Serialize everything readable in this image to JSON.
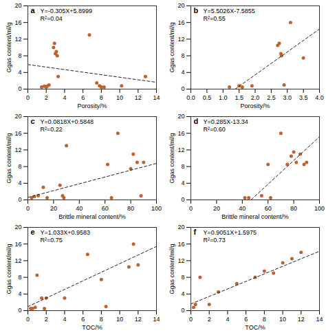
{
  "chart_data": [
    {
      "type": "scatter",
      "title": "a",
      "xlabel": "Porosity/%",
      "ylabel": "Ggas content/ml/g",
      "annotations": [
        "Y=-0.305X+5.8999",
        "R²=0.04"
      ],
      "xlim": [
        0,
        14
      ],
      "ylim": [
        0,
        20
      ],
      "xticks": [
        0,
        2,
        4,
        6,
        8,
        10,
        12,
        14
      ],
      "yticks": [
        0,
        4,
        8,
        12,
        16,
        20
      ],
      "grid": false,
      "series": [
        {
          "type": "scatter",
          "marker": "circle",
          "color": "#c0612b",
          "x": [
            1.5,
            1.8,
            2.0,
            2.1,
            2.3,
            2.8,
            2.9,
            3.0,
            3.1,
            3.2,
            3.3,
            6.7,
            7.5,
            7.8,
            8.0,
            8.3,
            10.2,
            12.8
          ],
          "values": [
            0.5,
            0.7,
            0.5,
            0.7,
            1.0,
            10.0,
            11.0,
            8.5,
            9.0,
            8.0,
            3.0,
            13.0,
            1.5,
            0.8,
            0.5,
            0.5,
            0.8,
            3.0
          ]
        },
        {
          "type": "line",
          "line_style": "dashed",
          "color": "#222222",
          "x": [
            0,
            14
          ],
          "values": [
            5.8999,
            1.6299
          ]
        }
      ]
    },
    {
      "type": "scatter",
      "title": "b",
      "xlabel": "Porosity/%",
      "ylabel": "Ggas content/ml/g",
      "annotations": [
        "Y=5.5026X-7.5855",
        "R²=0.55"
      ],
      "xlim": [
        0,
        4
      ],
      "ylim": [
        0,
        20
      ],
      "xticks": [
        {
          "value": 0,
          "label": "0.0"
        },
        0.5,
        {
          "value": 1,
          "label": "1.0"
        },
        1.5,
        {
          "value": 2,
          "label": "2.0"
        },
        2.5,
        {
          "value": 3,
          "label": "3.0"
        },
        3.5,
        {
          "value": 4,
          "label": "4.0"
        }
      ],
      "yticks": [
        0,
        4,
        8,
        12,
        16,
        20
      ],
      "grid": false,
      "series": [
        {
          "type": "scatter",
          "marker": "circle",
          "color": "#c0612b",
          "x": [
            1.2,
            1.5,
            1.6,
            1.9,
            2.7,
            2.75,
            2.8,
            2.82,
            2.9,
            3.1,
            3.5
          ],
          "values": [
            0.5,
            0.8,
            0.5,
            0.8,
            10.5,
            11.0,
            8.5,
            8.0,
            1.0,
            16.0,
            7.5
          ]
        },
        {
          "type": "line",
          "line_style": "dashed",
          "color": "#222222",
          "x": [
            1.38,
            4.0
          ],
          "values": [
            0.008088,
            14.4249
          ]
        }
      ]
    },
    {
      "type": "scatter",
      "title": "c",
      "xlabel": "Brittle mineral content/%",
      "ylabel": "Ggas content/ml/g",
      "annotations": [
        "Y=0.0818X+0.5848",
        "R²=0.22"
      ],
      "xlim": [
        0,
        100
      ],
      "ylim": [
        0,
        20
      ],
      "xticks": [
        0,
        20,
        40,
        60,
        80,
        100
      ],
      "yticks": [
        0,
        4,
        8,
        12,
        16,
        20
      ],
      "grid": false,
      "series": [
        {
          "type": "scatter",
          "marker": "circle",
          "color": "#c0612b",
          "x": [
            3,
            5,
            8,
            12,
            15,
            25,
            27,
            28,
            30,
            62,
            65,
            70,
            80,
            82,
            85,
            88,
            90
          ],
          "values": [
            0.5,
            0.8,
            1.0,
            3.0,
            0.5,
            3.5,
            1.0,
            0.5,
            13.0,
            8.5,
            0.5,
            16.0,
            7.5,
            11.0,
            9.0,
            1.0,
            9.0
          ]
        },
        {
          "type": "line",
          "line_style": "dashed",
          "color": "#222222",
          "x": [
            0,
            100
          ],
          "values": [
            0.5848,
            8.7648
          ]
        }
      ]
    },
    {
      "type": "scatter",
      "title": "d",
      "xlabel": "Brittle mineral content/%",
      "ylabel": "Ggas content/ml/g",
      "annotations": [
        "Y=0.285X-13.34",
        "R²=0.60"
      ],
      "xlim": [
        0,
        100
      ],
      "ylim": [
        0,
        20
      ],
      "xticks": [
        0,
        20,
        40,
        60,
        80,
        100
      ],
      "yticks": [
        0,
        4,
        8,
        12,
        16,
        20
      ],
      "grid": false,
      "series": [
        {
          "type": "scatter",
          "marker": "circle",
          "color": "#c0612b",
          "x": [
            42,
            45,
            55,
            60,
            62,
            70,
            75,
            78,
            80,
            82,
            85,
            88,
            90
          ],
          "values": [
            0.5,
            0.5,
            1.0,
            8.5,
            0.5,
            16.0,
            8.5,
            10.5,
            11.5,
            9.0,
            11.0,
            8.5,
            9.0
          ]
        },
        {
          "type": "line",
          "line_style": "dashed",
          "color": "#222222",
          "x": [
            47,
            100
          ],
          "values": [
            0.055,
            15.16
          ]
        }
      ]
    },
    {
      "type": "scatter",
      "title": "e",
      "xlabel": "TOC/%",
      "ylabel": "Ggas content/ml/g",
      "annotations": [
        "Y=1.033X+0.9583",
        "R²=0.75"
      ],
      "xlim": [
        0,
        14
      ],
      "ylim": [
        0,
        20
      ],
      "xticks": [
        0,
        2,
        4,
        6,
        8,
        10,
        12,
        14
      ],
      "yticks": [
        0,
        4,
        8,
        12,
        16,
        20
      ],
      "grid": false,
      "series": [
        {
          "type": "scatter",
          "marker": "circle",
          "color": "#c0612b",
          "x": [
            0.3,
            0.5,
            0.8,
            1.0,
            1.5,
            1.8,
            2.0,
            4.0,
            6.5,
            8.0,
            8.5,
            11.0,
            11.5,
            12.0
          ],
          "values": [
            0.5,
            0.5,
            0.8,
            8.5,
            3.0,
            0.5,
            3.0,
            3.0,
            13.5,
            7.5,
            1.0,
            10.5,
            16.0,
            11.0
          ]
        },
        {
          "type": "line",
          "line_style": "dashed",
          "color": "#222222",
          "x": [
            0,
            14
          ],
          "values": [
            0.9583,
            15.4203
          ]
        }
      ]
    },
    {
      "type": "scatter",
      "title": "f",
      "xlabel": "TOC/%",
      "ylabel": "Ggas content/ml/g",
      "annotations": [
        "Y=0.9051X+1.5975",
        "R²=0.73"
      ],
      "xlim": [
        0,
        14
      ],
      "ylim": [
        0,
        20
      ],
      "xticks": [
        0,
        2,
        4,
        6,
        8,
        10,
        12,
        14
      ],
      "yticks": [
        0,
        4,
        8,
        12,
        16,
        20
      ],
      "grid": false,
      "series": [
        {
          "type": "scatter",
          "marker": "circle",
          "color": "#c0612b",
          "x": [
            0.3,
            0.5,
            1.0,
            2.0,
            3.0,
            5.0,
            7.0,
            8.0,
            9.0,
            10.0,
            11.0,
            12.0
          ],
          "values": [
            0.8,
            1.5,
            8.0,
            1.5,
            4.5,
            6.5,
            8.0,
            9.5,
            9.0,
            11.5,
            12.5,
            14.0
          ]
        },
        {
          "type": "line",
          "line_style": "dashed",
          "color": "#222222",
          "x": [
            0,
            14
          ],
          "values": [
            1.5975,
            14.2689
          ]
        }
      ]
    }
  ]
}
